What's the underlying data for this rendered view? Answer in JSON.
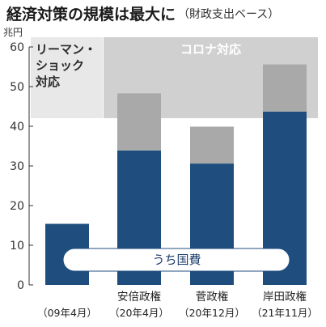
{
  "chart_data": {
    "type": "bar",
    "stacked": true,
    "title": "経済対策の規模は最大に",
    "subtitle": "（財政支出ベース）",
    "ylabel": "兆円",
    "ylim": [
      0,
      60
    ],
    "yticks": [
      0,
      10,
      20,
      30,
      40,
      50,
      60
    ],
    "grid": false,
    "categories": [
      {
        "name": "",
        "period": "（09年4月）"
      },
      {
        "name": "安倍政権",
        "period": "（20年4月）"
      },
      {
        "name": "菅政権",
        "period": "（20年12月）"
      },
      {
        "name": "岸田政権",
        "period": "（21年11月）"
      }
    ],
    "series": [
      {
        "name": "うち国費",
        "color": "#1f4e7e",
        "values": [
          15.4,
          33.9,
          30.6,
          43.7
        ]
      },
      {
        "name": "",
        "color": "#a9a9a9",
        "values": [
          0,
          14.4,
          9.3,
          11.9
        ]
      }
    ],
    "regions": [
      {
        "label_lines": [
          "リーマン・",
          "ショック",
          "対応"
        ],
        "from": 0,
        "to": 0,
        "color": "#e8e8e8"
      },
      {
        "label_lines": [
          "コロナ対応"
        ],
        "from": 1,
        "to": 3,
        "color": "#d0d0d0"
      }
    ],
    "legend": {
      "label": "うち国費",
      "placement": "bottom-center"
    }
  }
}
